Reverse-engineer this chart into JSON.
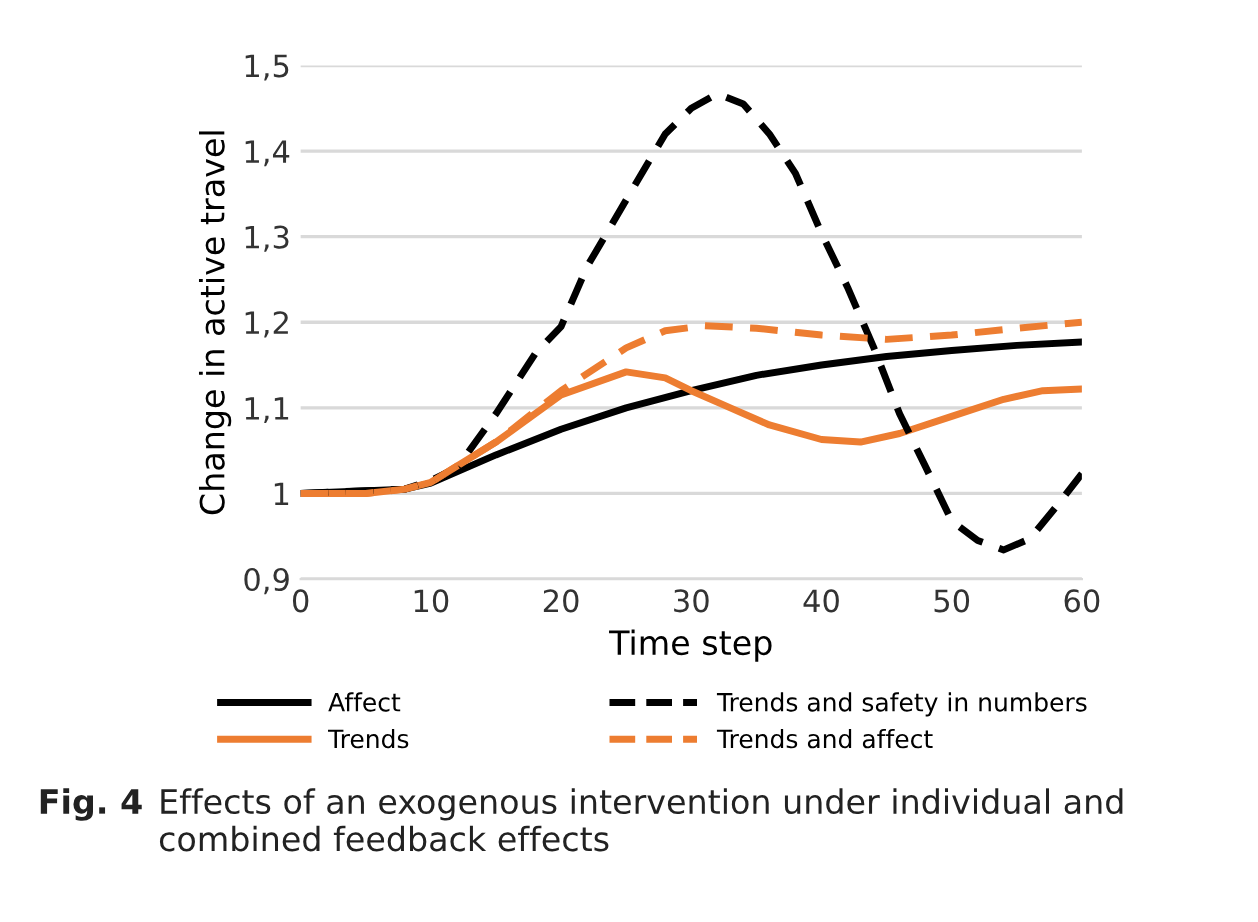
{
  "chart_data": {
    "type": "line",
    "xlabel": "Time step",
    "ylabel": "Change in active travel",
    "xlim": [
      0,
      60
    ],
    "xticks": [
      0,
      10,
      20,
      30,
      40,
      50,
      60
    ],
    "ylim": [
      0.9,
      1.5
    ],
    "yticks": [
      {
        "value": 0.9,
        "label": "0,9"
      },
      {
        "value": 1,
        "label": "1"
      },
      {
        "value": 1.1,
        "label": "1,1"
      },
      {
        "value": 1.2,
        "label": "1,2"
      },
      {
        "value": 1.3,
        "label": "1,3"
      },
      {
        "value": 1.4,
        "label": "1,4"
      },
      {
        "value": 1.5,
        "label": "1,5"
      }
    ],
    "grid": "y",
    "legend": "bottom",
    "marker": "none",
    "series": [
      {
        "name": "Affect",
        "color": "#000000",
        "line_style": "solid",
        "x": [
          0,
          8,
          10,
          15,
          20,
          25,
          30,
          35,
          40,
          45,
          50,
          55,
          60
        ],
        "values": [
          1,
          1.005,
          1.012,
          1.045,
          1.075,
          1.1,
          1.12,
          1.138,
          1.15,
          1.16,
          1.167,
          1.173,
          1.177
        ]
      },
      {
        "name": "Trends",
        "color": "#ed7d31",
        "line_style": "solid",
        "x": [
          0,
          5,
          8,
          10,
          15,
          20,
          25,
          28,
          30,
          33,
          36,
          40,
          43,
          46,
          50,
          54,
          57,
          60
        ],
        "values": [
          1,
          1,
          1.005,
          1.013,
          1.06,
          1.115,
          1.142,
          1.135,
          1.12,
          1.1,
          1.08,
          1.063,
          1.06,
          1.07,
          1.09,
          1.11,
          1.12,
          1.122
        ]
      },
      {
        "name": "Trends and safety in numbers",
        "color": "#000000",
        "line_style": "dashed",
        "x": [
          0,
          8,
          10,
          12,
          15,
          18,
          20,
          22,
          25,
          28,
          30,
          32,
          34,
          36,
          38,
          40,
          42,
          44,
          46,
          48,
          50,
          52,
          54,
          56,
          58,
          60
        ],
        "values": [
          1,
          1.005,
          1.015,
          1.03,
          1.093,
          1.163,
          1.195,
          1.265,
          1.343,
          1.42,
          1.45,
          1.467,
          1.455,
          1.42,
          1.374,
          1.304,
          1.241,
          1.171,
          1.093,
          1.031,
          0.968,
          0.945,
          0.934,
          0.947,
          0.984,
          1.023
        ]
      },
      {
        "name": "Trends and affect",
        "color": "#ed7d31",
        "line_style": "dashed",
        "x": [
          0,
          5,
          8,
          10,
          15,
          20,
          25,
          28,
          31,
          35,
          40,
          45,
          50,
          55,
          60
        ],
        "values": [
          1,
          1,
          1.005,
          1.013,
          1.06,
          1.12,
          1.17,
          1.19,
          1.196,
          1.193,
          1.185,
          1.18,
          1.185,
          1.193,
          1.2
        ]
      }
    ],
    "annotations": [
      "Fig. 4",
      "Effects of an exogenous intervention under individual and combined feedback effects"
    ]
  }
}
